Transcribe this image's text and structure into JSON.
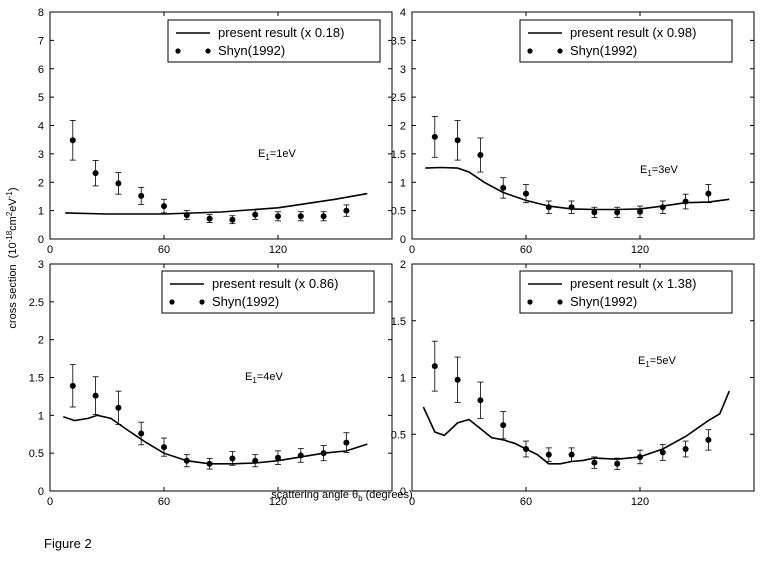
{
  "figure": {
    "caption": "Figure 2",
    "ylabel_main": "cross section",
    "ylabel_unit_pre": "(10",
    "ylabel_unit_exp1": "-18",
    "ylabel_unit_mid": "cm",
    "ylabel_unit_exp2": "2",
    "ylabel_unit_mid2": "eV",
    "ylabel_unit_exp3": "-1",
    "ylabel_unit_post": ")",
    "xlabel_pre": "scattering angle θ",
    "xlabel_sub": "b",
    "xlabel_post": " (degrees)"
  },
  "chart_data": [
    {
      "type": "line",
      "energy_label": "E",
      "energy_sub": "1",
      "energy_value": "=1eV",
      "xlim": [
        0,
        180
      ],
      "ylim": [
        0,
        8
      ],
      "xticks": [
        "0",
        "60",
        "120"
      ],
      "yticks": [
        "0",
        "1",
        "2",
        "3",
        "4",
        "5",
        "6",
        "7",
        "8"
      ],
      "series": [
        {
          "name": "present result (x 0.18)",
          "kind": "line",
          "x": [
            8,
            30,
            60,
            90,
            120,
            150,
            167
          ],
          "y": [
            0.92,
            0.88,
            0.88,
            0.95,
            1.1,
            1.4,
            1.6
          ]
        },
        {
          "name": "Shyn(1992)",
          "kind": "scatter",
          "x": [
            12,
            24,
            36,
            48,
            60,
            72,
            84,
            96,
            108,
            120,
            132,
            144,
            156
          ],
          "y": [
            3.48,
            2.32,
            1.96,
            1.52,
            1.16,
            0.84,
            0.72,
            0.68,
            0.86,
            0.8,
            0.8,
            0.8,
            1.0
          ],
          "err": [
            0.7,
            0.45,
            0.38,
            0.3,
            0.24,
            0.16,
            0.14,
            0.14,
            0.17,
            0.16,
            0.16,
            0.16,
            0.2
          ]
        }
      ]
    },
    {
      "type": "line",
      "energy_label": "E",
      "energy_sub": "1",
      "energy_value": "=3eV",
      "xlim": [
        0,
        180
      ],
      "ylim": [
        0,
        4
      ],
      "xticks": [
        "0",
        "60",
        "120"
      ],
      "yticks": [
        "0",
        "0.5",
        "1",
        "1.5",
        "2",
        "2.5",
        "3",
        "3.5",
        "4"
      ],
      "series": [
        {
          "name": "present result (x 0.98)",
          "kind": "line",
          "x": [
            7,
            15,
            24,
            30,
            38,
            48,
            60,
            72,
            84,
            96,
            108,
            120,
            132,
            144,
            156,
            167
          ],
          "y": [
            1.25,
            1.26,
            1.25,
            1.18,
            1.0,
            0.82,
            0.68,
            0.58,
            0.53,
            0.52,
            0.52,
            0.53,
            0.58,
            0.64,
            0.65,
            0.7
          ]
        },
        {
          "name": "Shyn(1992)",
          "kind": "scatter",
          "x": [
            12,
            24,
            36,
            48,
            60,
            72,
            84,
            96,
            108,
            120,
            132,
            144,
            156
          ],
          "y": [
            1.8,
            1.74,
            1.48,
            0.9,
            0.8,
            0.56,
            0.56,
            0.47,
            0.47,
            0.48,
            0.56,
            0.66,
            0.8
          ],
          "err": [
            0.36,
            0.35,
            0.3,
            0.18,
            0.16,
            0.11,
            0.11,
            0.09,
            0.09,
            0.1,
            0.11,
            0.13,
            0.16
          ]
        }
      ]
    },
    {
      "type": "line",
      "energy_label": "E",
      "energy_sub": "1",
      "energy_value": "=4eV",
      "xlim": [
        0,
        180
      ],
      "ylim": [
        0,
        3
      ],
      "xticks": [
        "0",
        "60",
        "120"
      ],
      "yticks": [
        "0",
        "0.5",
        "1",
        "1.5",
        "2",
        "2.5",
        "3"
      ],
      "series": [
        {
          "name": "present result (x 0.86)",
          "kind": "line",
          "x": [
            7,
            13,
            20,
            25,
            32,
            40,
            50,
            60,
            72,
            84,
            96,
            108,
            120,
            132,
            144,
            156,
            167
          ],
          "y": [
            0.98,
            0.93,
            0.96,
            1.0,
            0.96,
            0.82,
            0.65,
            0.5,
            0.4,
            0.36,
            0.36,
            0.37,
            0.4,
            0.45,
            0.5,
            0.53,
            0.62
          ]
        },
        {
          "name": "Shyn(1992)",
          "kind": "scatter",
          "x": [
            12,
            24,
            36,
            48,
            60,
            72,
            84,
            96,
            108,
            120,
            132,
            144,
            156
          ],
          "y": [
            1.39,
            1.26,
            1.1,
            0.76,
            0.58,
            0.4,
            0.36,
            0.43,
            0.4,
            0.44,
            0.47,
            0.5,
            0.64
          ],
          "err": [
            0.28,
            0.25,
            0.22,
            0.15,
            0.12,
            0.08,
            0.07,
            0.09,
            0.08,
            0.09,
            0.09,
            0.1,
            0.13
          ]
        }
      ]
    },
    {
      "type": "line",
      "energy_label": "E",
      "energy_sub": "1",
      "energy_value": "=5eV",
      "xlim": [
        0,
        180
      ],
      "ylim": [
        0,
        2
      ],
      "xticks": [
        "0",
        "60",
        "120"
      ],
      "yticks": [
        "0",
        "0.5",
        "1",
        "1.5",
        "2"
      ],
      "series": [
        {
          "name": "present result (x 1.38)",
          "kind": "line",
          "x": [
            6,
            12,
            17,
            24,
            30,
            36,
            42,
            48,
            54,
            60,
            66,
            72,
            78,
            84,
            90,
            96,
            108,
            120,
            132,
            144,
            156,
            162,
            167
          ],
          "y": [
            0.74,
            0.52,
            0.49,
            0.6,
            0.63,
            0.55,
            0.47,
            0.45,
            0.42,
            0.37,
            0.32,
            0.24,
            0.24,
            0.26,
            0.27,
            0.29,
            0.28,
            0.3,
            0.37,
            0.48,
            0.62,
            0.68,
            0.88
          ]
        },
        {
          "name": "Shyn(1992)",
          "kind": "scatter",
          "x": [
            12,
            24,
            36,
            48,
            60,
            72,
            84,
            96,
            108,
            120,
            132,
            144,
            156
          ],
          "y": [
            1.1,
            0.98,
            0.8,
            0.58,
            0.37,
            0.32,
            0.32,
            0.25,
            0.24,
            0.3,
            0.34,
            0.37,
            0.45
          ],
          "err": [
            0.22,
            0.2,
            0.16,
            0.12,
            0.07,
            0.06,
            0.06,
            0.05,
            0.05,
            0.06,
            0.07,
            0.07,
            0.09
          ]
        }
      ]
    }
  ]
}
